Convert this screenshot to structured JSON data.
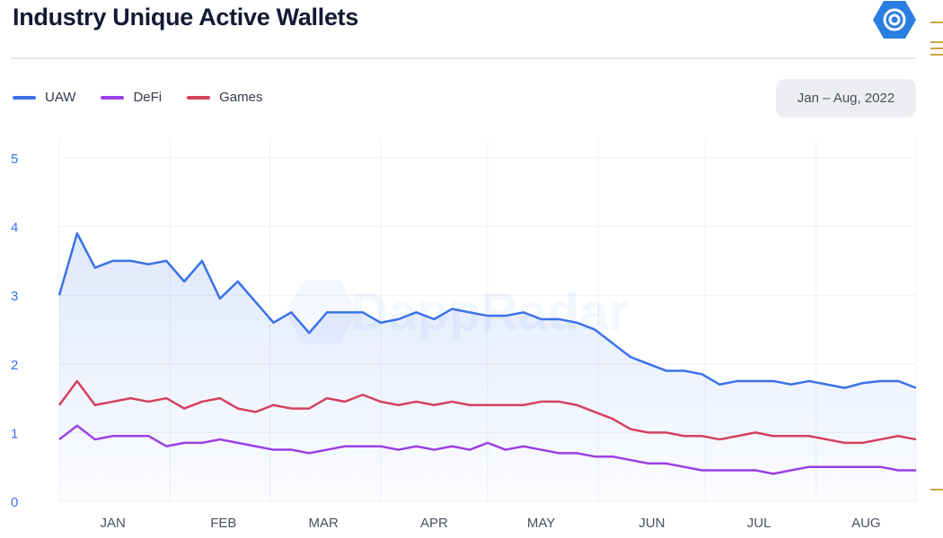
{
  "header": {
    "title": "Industry Unique Active Wallets",
    "range_button": "Jan – Aug, 2022"
  },
  "watermark": "DappRadar",
  "chart_data": {
    "type": "line",
    "title": "Industry Unique Active Wallets",
    "xlabel": "",
    "ylabel": "",
    "ylim": [
      0,
      5
    ],
    "yticks": [
      "0",
      "1",
      "2",
      "3",
      "4",
      "5"
    ],
    "xticks": [
      "JAN",
      "FEB",
      "MAR",
      "APR",
      "MAY",
      "JUN",
      "JUL",
      "AUG"
    ],
    "xlim": [
      "2022-01-01",
      "2022-08-29"
    ],
    "grid": true,
    "legend": "top-left",
    "x": [
      "2022-01-01",
      "2022-01-06",
      "2022-01-11",
      "2022-01-16",
      "2022-01-21",
      "2022-01-26",
      "2022-01-31",
      "2022-02-05",
      "2022-02-10",
      "2022-02-15",
      "2022-02-20",
      "2022-02-25",
      "2022-03-02",
      "2022-03-07",
      "2022-03-12",
      "2022-03-17",
      "2022-03-22",
      "2022-03-27",
      "2022-04-01",
      "2022-04-06",
      "2022-04-11",
      "2022-04-16",
      "2022-04-21",
      "2022-04-26",
      "2022-05-01",
      "2022-05-06",
      "2022-05-11",
      "2022-05-16",
      "2022-05-21",
      "2022-05-26",
      "2022-05-31",
      "2022-06-05",
      "2022-06-10",
      "2022-06-15",
      "2022-06-20",
      "2022-06-25",
      "2022-06-30",
      "2022-07-05",
      "2022-07-10",
      "2022-07-15",
      "2022-07-20",
      "2022-07-25",
      "2022-07-30",
      "2022-08-04",
      "2022-08-09",
      "2022-08-14",
      "2022-08-19",
      "2022-08-24",
      "2022-08-29"
    ],
    "series": [
      {
        "name": "UAW",
        "color": "#3a72e8",
        "fill": true,
        "values": [
          3.0,
          3.9,
          3.4,
          3.5,
          3.5,
          3.45,
          3.5,
          3.2,
          3.5,
          2.95,
          3.2,
          2.9,
          2.6,
          2.75,
          2.45,
          2.75,
          2.75,
          2.75,
          2.6,
          2.65,
          2.75,
          2.65,
          2.8,
          2.75,
          2.7,
          2.7,
          2.75,
          2.65,
          2.65,
          2.6,
          2.5,
          2.3,
          2.1,
          2.0,
          1.9,
          1.9,
          1.85,
          1.7,
          1.75,
          1.75,
          1.75,
          1.7,
          1.75,
          1.7,
          1.65,
          1.72,
          1.75,
          1.75,
          1.65
        ]
      },
      {
        "name": "DeFi",
        "color": "#9b3fe6",
        "values": [
          0.9,
          1.1,
          0.9,
          0.95,
          0.95,
          0.95,
          0.8,
          0.85,
          0.85,
          0.9,
          0.85,
          0.8,
          0.75,
          0.75,
          0.7,
          0.75,
          0.8,
          0.8,
          0.8,
          0.75,
          0.8,
          0.75,
          0.8,
          0.75,
          0.85,
          0.75,
          0.8,
          0.75,
          0.7,
          0.7,
          0.65,
          0.65,
          0.6,
          0.55,
          0.55,
          0.5,
          0.45,
          0.45,
          0.45,
          0.45,
          0.4,
          0.45,
          0.5,
          0.5,
          0.5,
          0.5,
          0.5,
          0.45,
          0.45
        ]
      },
      {
        "name": "Games",
        "color": "#d6405f",
        "values": [
          1.4,
          1.75,
          1.4,
          1.45,
          1.5,
          1.45,
          1.5,
          1.35,
          1.45,
          1.5,
          1.35,
          1.3,
          1.4,
          1.35,
          1.35,
          1.5,
          1.45,
          1.55,
          1.45,
          1.4,
          1.45,
          1.4,
          1.45,
          1.4,
          1.4,
          1.4,
          1.4,
          1.45,
          1.45,
          1.4,
          1.3,
          1.2,
          1.05,
          1.0,
          1.0,
          0.95,
          0.95,
          0.9,
          0.95,
          1.0,
          0.95,
          0.95,
          0.95,
          0.9,
          0.85,
          0.85,
          0.9,
          0.95,
          0.9
        ]
      }
    ]
  },
  "colors": {
    "accent": "#3a72e8",
    "tick_text": "#3a72e8",
    "month_text": "#4a5060"
  }
}
